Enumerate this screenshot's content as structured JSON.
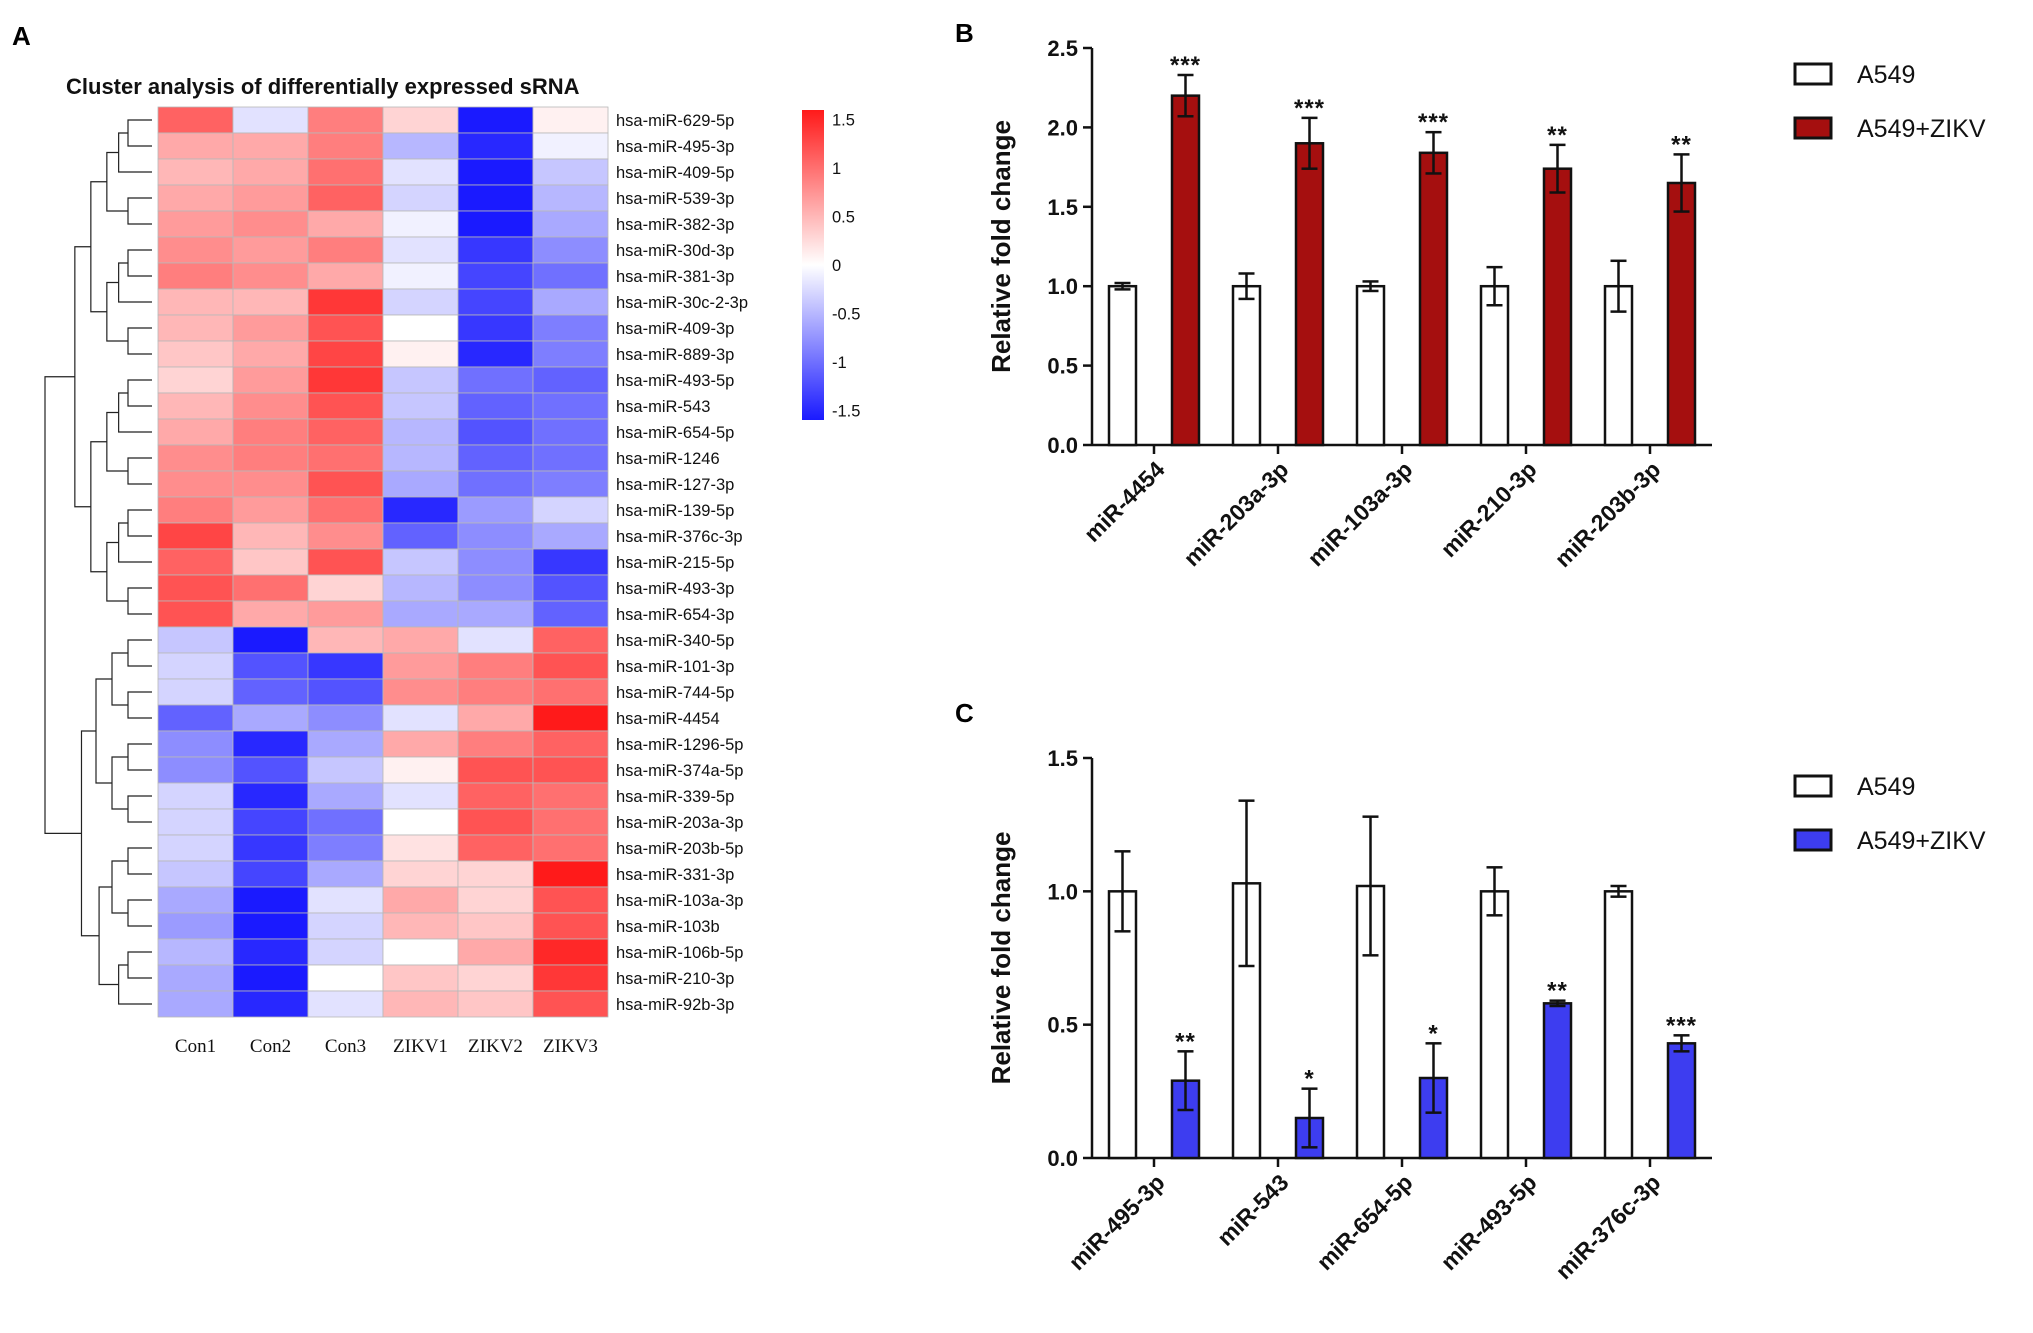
{
  "colors": {
    "heat_low": "#1a1aff",
    "heat_mid": "#ffffff",
    "heat_high": "#ff1a1a",
    "bar_control": "#ffffff",
    "bar_zikv_b": "#a50f0f",
    "bar_zikv_c": "#3d3df0",
    "stroke": "#111111"
  },
  "chart_data": [
    {
      "panel": "A",
      "type": "heatmap",
      "title": "Cluster analysis of differentially expressed sRNA",
      "columns": [
        "Con1",
        "Con2",
        "Con3",
        "ZIKV1",
        "ZIKV2",
        "ZIKV3"
      ],
      "rows": [
        "hsa-miR-629-5p",
        "hsa-miR-495-3p",
        "hsa-miR-409-5p",
        "hsa-miR-539-3p",
        "hsa-miR-382-3p",
        "hsa-miR-30d-3p",
        "hsa-miR-381-3p",
        "hsa-miR-30c-2-3p",
        "hsa-miR-409-3p",
        "hsa-miR-889-3p",
        "hsa-miR-493-5p",
        "hsa-miR-543",
        "hsa-miR-654-5p",
        "hsa-miR-1246",
        "hsa-miR-127-3p",
        "hsa-miR-139-5p",
        "hsa-miR-376c-3p",
        "hsa-miR-215-5p",
        "hsa-miR-493-3p",
        "hsa-miR-654-3p",
        "hsa-miR-340-5p",
        "hsa-miR-101-3p",
        "hsa-miR-744-5p",
        "hsa-miR-4454",
        "hsa-miR-1296-5p",
        "hsa-miR-374a-5p",
        "hsa-miR-339-5p",
        "hsa-miR-203a-3p",
        "hsa-miR-203b-5p",
        "hsa-miR-331-3p",
        "hsa-miR-103a-3p",
        "hsa-miR-103b",
        "hsa-miR-106b-5p",
        "hsa-miR-210-3p",
        "hsa-miR-92b-3p"
      ],
      "values": [
        [
          1.1,
          -0.2,
          0.9,
          0.3,
          -1.6,
          0.1
        ],
        [
          0.6,
          0.6,
          0.9,
          -0.5,
          -1.5,
          -0.1
        ],
        [
          0.5,
          0.6,
          1.0,
          -0.2,
          -1.7,
          -0.4
        ],
        [
          0.6,
          0.7,
          1.1,
          -0.3,
          -1.6,
          -0.5
        ],
        [
          0.7,
          0.8,
          0.6,
          -0.1,
          -1.6,
          -0.6
        ],
        [
          0.8,
          0.7,
          0.9,
          -0.2,
          -1.4,
          -0.8
        ],
        [
          0.9,
          0.8,
          0.6,
          -0.1,
          -1.3,
          -1.0
        ],
        [
          0.5,
          0.5,
          1.4,
          -0.3,
          -1.3,
          -0.6
        ],
        [
          0.5,
          0.7,
          1.2,
          0.0,
          -1.4,
          -0.9
        ],
        [
          0.4,
          0.6,
          1.3,
          0.1,
          -1.5,
          -0.9
        ],
        [
          0.3,
          0.7,
          1.4,
          -0.4,
          -1.0,
          -1.1
        ],
        [
          0.5,
          0.8,
          1.2,
          -0.4,
          -1.1,
          -1.0
        ],
        [
          0.6,
          0.9,
          1.1,
          -0.5,
          -1.2,
          -1.0
        ],
        [
          0.8,
          0.9,
          1.0,
          -0.5,
          -1.1,
          -1.0
        ],
        [
          0.8,
          0.8,
          1.2,
          -0.6,
          -1.0,
          -0.9
        ],
        [
          0.9,
          0.7,
          1.0,
          -1.5,
          -0.7,
          -0.3
        ],
        [
          1.3,
          0.5,
          0.8,
          -1.1,
          -0.8,
          -0.6
        ],
        [
          1.1,
          0.4,
          1.2,
          -0.4,
          -0.8,
          -1.4
        ],
        [
          1.2,
          1.0,
          0.3,
          -0.5,
          -0.8,
          -1.2
        ],
        [
          1.2,
          0.6,
          0.7,
          -0.6,
          -0.6,
          -1.1
        ],
        [
          -0.4,
          -1.6,
          0.5,
          0.6,
          -0.2,
          1.1
        ],
        [
          -0.3,
          -1.2,
          -1.4,
          0.7,
          0.9,
          1.2
        ],
        [
          -0.3,
          -1.1,
          -1.2,
          0.8,
          0.9,
          1.0
        ],
        [
          -1.1,
          -0.6,
          -0.8,
          -0.2,
          0.6,
          1.6
        ],
        [
          -0.8,
          -1.5,
          -0.6,
          0.6,
          0.9,
          1.1
        ],
        [
          -0.8,
          -1.2,
          -0.4,
          0.1,
          1.2,
          1.2
        ],
        [
          -0.3,
          -1.5,
          -0.6,
          -0.2,
          1.1,
          1.0
        ],
        [
          -0.3,
          -1.3,
          -1.0,
          0.0,
          1.2,
          1.0
        ],
        [
          -0.3,
          -1.4,
          -0.9,
          0.2,
          1.1,
          1.0
        ],
        [
          -0.4,
          -1.3,
          -0.6,
          0.3,
          0.3,
          1.6
        ],
        [
          -0.6,
          -1.6,
          -0.2,
          0.6,
          0.3,
          1.2
        ],
        [
          -0.7,
          -1.6,
          -0.3,
          0.5,
          0.4,
          1.2
        ],
        [
          -0.5,
          -1.5,
          -0.3,
          0.0,
          0.6,
          1.5
        ],
        [
          -0.6,
          -1.6,
          0.0,
          0.4,
          0.3,
          1.4
        ],
        [
          -0.6,
          -1.5,
          -0.2,
          0.5,
          0.4,
          1.2
        ]
      ],
      "colorbar": {
        "ticks": [
          "1.5",
          "1",
          "0.5",
          "0",
          "-0.5",
          "-1",
          "-1.5"
        ],
        "range": [
          -1.6,
          1.6
        ]
      }
    },
    {
      "panel": "B",
      "type": "bar",
      "ylabel": "Relative fold change",
      "ylim": [
        0,
        2.5
      ],
      "yticks": [
        "0.0",
        "0.5",
        "1.0",
        "1.5",
        "2.0",
        "2.5"
      ],
      "categories": [
        "miR-4454",
        "miR-203a-3p",
        "miR-103a-3p",
        "miR-210-3p",
        "miR-203b-3p"
      ],
      "series": [
        {
          "name": "A549",
          "values": [
            1.0,
            1.0,
            1.0,
            1.0,
            1.0
          ],
          "errors": [
            0.02,
            0.08,
            0.03,
            0.12,
            0.16
          ]
        },
        {
          "name": "A549+ZIKV",
          "values": [
            2.2,
            1.9,
            1.84,
            1.74,
            1.65
          ],
          "errors": [
            0.13,
            0.16,
            0.13,
            0.15,
            0.18
          ]
        }
      ],
      "significance": [
        "***",
        "***",
        "***",
        "**",
        "**"
      ],
      "legend": [
        "A549",
        "A549+ZIKV"
      ]
    },
    {
      "panel": "C",
      "type": "bar",
      "ylabel": "Relative fold change",
      "ylim": [
        0,
        1.5
      ],
      "yticks": [
        "0.0",
        "0.5",
        "1.0",
        "1.5"
      ],
      "categories": [
        "miR-495-3p",
        "miR-543",
        "miR-654-5p",
        "miR-493-5p",
        "miR-376c-3p"
      ],
      "series": [
        {
          "name": "A549",
          "values": [
            1.0,
            1.03,
            1.02,
            1.0,
            1.0
          ],
          "errors": [
            0.15,
            0.31,
            0.26,
            0.09,
            0.02
          ]
        },
        {
          "name": "A549+ZIKV",
          "values": [
            0.29,
            0.15,
            0.3,
            0.58,
            0.43
          ],
          "errors": [
            0.11,
            0.11,
            0.13,
            0.01,
            0.03
          ]
        }
      ],
      "significance": [
        "**",
        "*",
        "*",
        "**",
        "***"
      ],
      "legend": [
        "A549",
        "A549+ZIKV"
      ]
    }
  ],
  "panel_labels": [
    "A",
    "B",
    "C"
  ]
}
